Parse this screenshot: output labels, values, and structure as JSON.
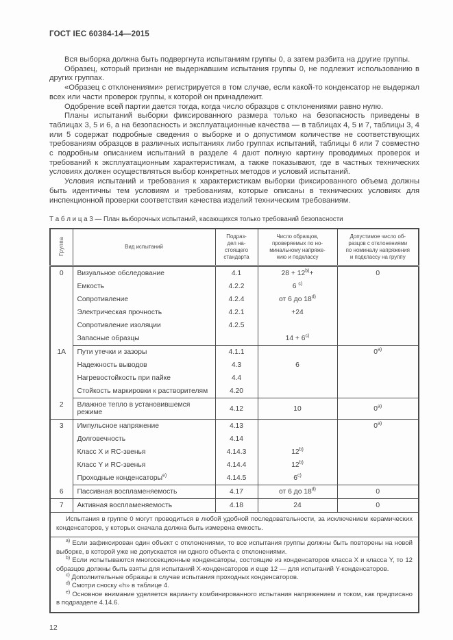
{
  "page": {
    "header_title": "ГОСТ IEC 60384-14—2015",
    "page_number": "12",
    "text_color": "#3e3e3e",
    "border_color": "#4a4a4a",
    "background_color": "#fdfdfd"
  },
  "paragraphs": [
    "Вся выборка должна быть подвергнута испытаниям группы 0, а затем разбита на другие группы.",
    "Образец, который признан не выдержавшим испытания группы 0, не подлежит использованию в других группах.",
    "«Образец с отклонениями» регистрируется в том случае, если какой-то конденсатор не выдержал всех или части проверок группы, к которой он принадлежит.",
    "Одобрение всей партии дается тогда, когда число образцов с отклонениями равно нулю.",
    "Планы испытаний выборки фиксированного размера только на безопасность приведены в таблицах 3, 5 и 6, а на безопасность и эксплуатационные качества — в таблицах 4, 5 и 7, таблицы 3, 4 или 5 содержат подробные сведения о выборке и о допустимом количестве не соответствующих требованиям образцов в различных испытаниях либо группах испытаний, таблицы 6 или 7 совместно с подробным описанием испытаний в разделе 4 дают полную картину проводимых проверок и требований к эксплуатационным характеристикам, а также показывают, где в частных технических условиях должен осуществляться выбор конкретных методов и условий испытаний.",
    "Условия испытаний и требования к характеристикам выборки фиксированного объема должны быть идентичны тем условиям и требованиям, которые описаны в технических условиях для инспекционной проверки соответствия качества изделий техническим требованиям."
  ],
  "table": {
    "caption": "Т а б л и ц а  3 — План выборочных испытаний, касающихся только требований безопасности",
    "columns": [
      "Группа",
      "Вид испытаний",
      "Подраздел настоящего стандарта",
      "Число образцов, проверяемых по номинальному напряжению и подклассу",
      "Допустимое число образцов с отклонениями по номиналу напряжения и подклассу на группу"
    ],
    "columns_display": [
      "Группа",
      "Вид испытаний",
      "Подраз-\nдел на-\nстоящего\nстандарта",
      "Число образцов,\nпроверяемых по но-\nминальному напряже-\nнию и подклассу",
      "Допустимое число об-\nразцов с отклонениями\nпо номиналу напряжения\nи подклассу на группу"
    ],
    "groups": [
      {
        "group": "0",
        "rows": [
          {
            "test": "Визуальное обследование",
            "clause": "4.1",
            "count": "28 + 12^{b)}+",
            "allowed": "0"
          },
          {
            "test": "Емкость",
            "clause": "4.2.2",
            "count": "6 ^{c)}",
            "allowed": ""
          },
          {
            "test": "Сопротивление",
            "clause": "4.2.4",
            "count": "от 6 до 18^{d)}",
            "allowed": ""
          },
          {
            "test": "Электрическая прочность",
            "clause": "4.2.1",
            "count": "+24",
            "allowed": ""
          },
          {
            "test": "Сопротивление изоляции",
            "clause": "4.2.5",
            "count": "",
            "allowed": ""
          },
          {
            "test": "Запасные образцы",
            "clause": "",
            "count": "14 + 6^{c)}",
            "allowed": ""
          }
        ]
      },
      {
        "group": "1A",
        "rows": [
          {
            "test": "Пути утечки и зазоры",
            "clause": "4.1.1",
            "count": "",
            "allowed": "0^{a)}"
          },
          {
            "test": "Надежность выводов",
            "clause": "4.3",
            "count": "6",
            "allowed": ""
          },
          {
            "test": "Нагревостойкость при пайке",
            "clause": "4.4",
            "count": "",
            "allowed": ""
          },
          {
            "test": "Стойкость маркировки к растворителям",
            "clause": "4.20",
            "count": "",
            "allowed": ""
          }
        ]
      },
      {
        "group": "2",
        "rows": [
          {
            "test": "Влажное тепло в установившемся режиме",
            "clause": "4.12",
            "count": "10",
            "allowed": "0^{a)}"
          }
        ]
      },
      {
        "group": "3",
        "rows": [
          {
            "test": "Импульсное напряжение",
            "clause": "4.13",
            "count": "",
            "allowed": "0^{a)}"
          },
          {
            "test": "Долговечность",
            "clause": "4.14",
            "count": "",
            "allowed": ""
          },
          {
            "test": "Класс X и RC-звенья",
            "clause": "4.14.3",
            "count": "12^{b)}",
            "allowed": ""
          },
          {
            "test": "Класс Y и RC-звенья",
            "clause": "4.14.4",
            "count": "12^{b)}",
            "allowed": ""
          },
          {
            "test": "Проходные конденсаторы^{e)}",
            "clause": "4.14.5",
            "count": "6^{c)}",
            "allowed": ""
          }
        ]
      },
      {
        "group": "6",
        "rows": [
          {
            "test": "Пассивная воспламеняемость",
            "clause": "4.17",
            "count": "от 6 до 18^{d)}",
            "allowed": "0"
          }
        ]
      },
      {
        "group": "7",
        "rows": [
          {
            "test": "Активная воспламеняемость",
            "clause": "4.18",
            "count": "24",
            "allowed": "0"
          }
        ]
      }
    ],
    "note": "Испытания в группе 0 могут проводиться в любой удобной последовательности, за исключением керамических конденсаторов, у которых сначала должна быть измерена емкость.",
    "footnotes": [
      {
        "marker": "a)",
        "text": "Если зафиксирован один объект с отклонениями, то все испытания группы должны быть повторены на новой выборке, в которой уже не допускается ни одного объекта с отклонениями."
      },
      {
        "marker": "b)",
        "text": "Если испытываются многосекционные конденсаторы, состоящие из конденсаторов класса X и класса Y, то 12 образцов должны быть взяты для испытаний X-конденсаторов и еще 12 — для испытаний Y-конденсаторов."
      },
      {
        "marker": "c)",
        "text": "Дополнительные образцы в случае испытания проходных конденсаторов."
      },
      {
        "marker": "d)",
        "text": "Смотри сноску «h» в таблице 4."
      },
      {
        "marker": "e)",
        "text": "Основное внимание уделяется варианту комбинированного испытания напряжением и током, как предписано в подразделе 4.14.6."
      }
    ]
  }
}
